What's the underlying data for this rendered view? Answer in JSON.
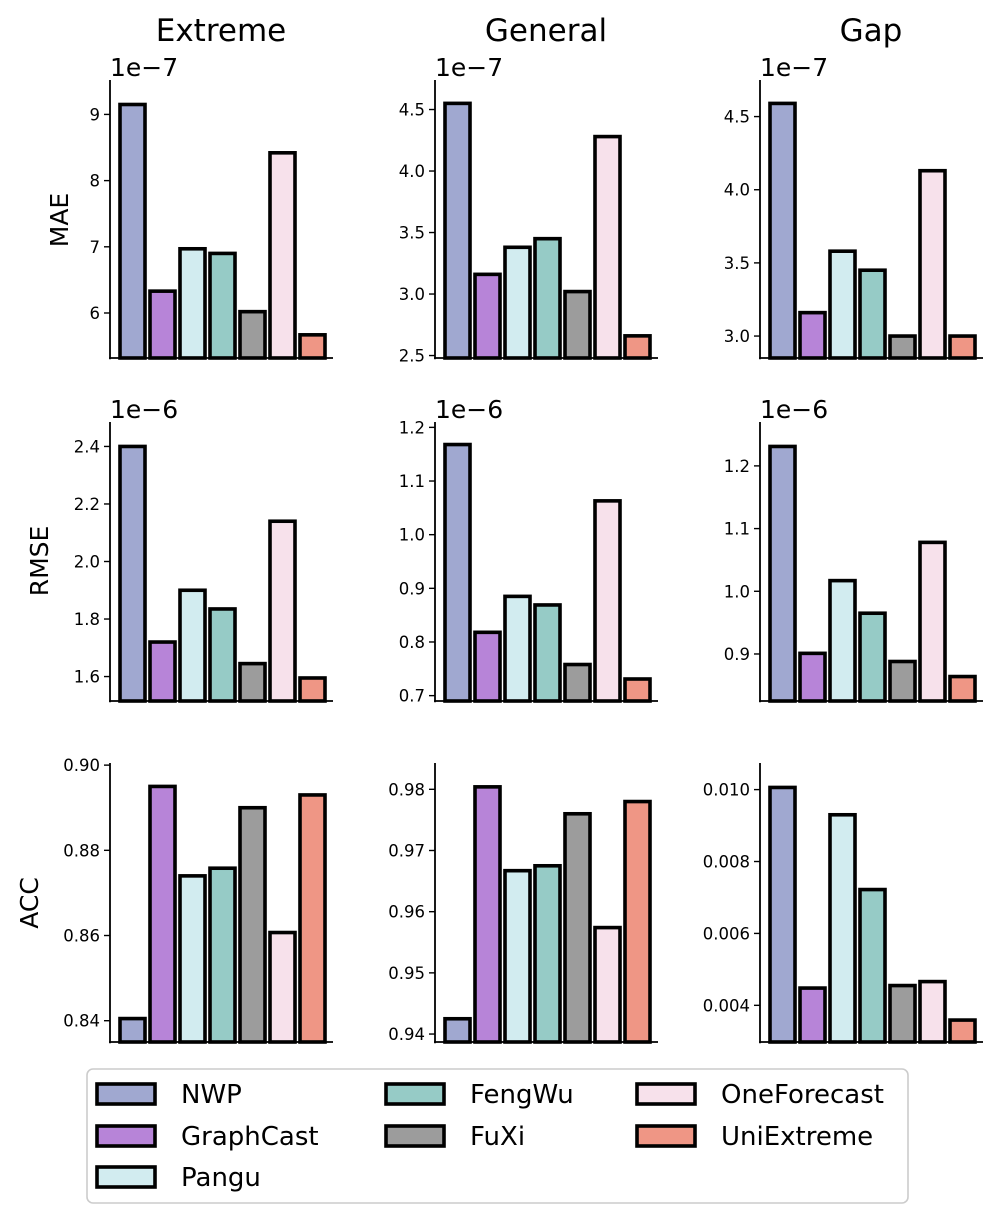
{
  "chart_data": {
    "type": "bar",
    "columns": [
      "Extreme",
      "General",
      "Gap"
    ],
    "rows": [
      "MAE",
      "RMSE",
      "ACC"
    ],
    "models": [
      "NWP",
      "GraphCast",
      "Pangu",
      "FengWu",
      "FuXi",
      "OneForecast",
      "UniExtreme"
    ],
    "colors": {
      "NWP": "#a0a8d0",
      "GraphCast": "#b784d8",
      "Pangu": "#d2ecf0",
      "FengWu": "#96cbc6",
      "FuXi": "#9c9c9c",
      "OneForecast": "#f7e1eb",
      "UniExtreme": "#ef9685"
    },
    "panels": [
      {
        "id": "mae-extreme",
        "row": "MAE",
        "column": "Extreme",
        "offset_label": "1e−7",
        "ylim": [
          5.32,
          9.52
        ],
        "yticks": [
          6,
          7,
          8,
          9
        ],
        "tick_labels": [
          "6",
          "7",
          "8",
          "9"
        ],
        "values": [
          9.15,
          6.33,
          6.97,
          6.9,
          6.02,
          8.42,
          5.67
        ]
      },
      {
        "id": "mae-general",
        "row": "MAE",
        "column": "General",
        "offset_label": "1e−7",
        "ylim": [
          2.48,
          4.74
        ],
        "yticks": [
          2.5,
          3.0,
          3.5,
          4.0,
          4.5
        ],
        "tick_labels": [
          "2.5",
          "3.0",
          "3.5",
          "4.0",
          "4.5"
        ],
        "values": [
          4.55,
          3.16,
          3.38,
          3.45,
          3.02,
          4.28,
          2.66
        ]
      },
      {
        "id": "mae-gap",
        "row": "MAE",
        "column": "Gap",
        "offset_label": "1e−7",
        "ylim": [
          2.85,
          4.75
        ],
        "yticks": [
          3.0,
          3.5,
          4.0,
          4.5
        ],
        "tick_labels": [
          "3.0",
          "3.5",
          "4.0",
          "4.5"
        ],
        "values": [
          4.59,
          3.16,
          3.58,
          3.45,
          3.0,
          4.13,
          3.0
        ]
      },
      {
        "id": "rmse-extreme",
        "row": "RMSE",
        "column": "Extreme",
        "offset_label": "1e−6",
        "ylim": [
          1.515,
          2.485
        ],
        "yticks": [
          1.6,
          1.8,
          2.0,
          2.2,
          2.4
        ],
        "tick_labels": [
          "1.6",
          "1.8",
          "2.0",
          "2.2",
          "2.4"
        ],
        "values": [
          2.4,
          1.72,
          1.9,
          1.835,
          1.645,
          2.14,
          1.595
        ]
      },
      {
        "id": "rmse-general",
        "row": "RMSE",
        "column": "General",
        "offset_label": "1e−6",
        "ylim": [
          0.69,
          1.21
        ],
        "yticks": [
          0.7,
          0.8,
          0.9,
          1.0,
          1.1,
          1.2
        ],
        "tick_labels": [
          "0.7",
          "0.8",
          "0.9",
          "1.0",
          "1.1",
          "1.2"
        ],
        "values": [
          1.168,
          0.818,
          0.885,
          0.869,
          0.758,
          1.063,
          0.731
        ]
      },
      {
        "id": "rmse-gap",
        "row": "RMSE",
        "column": "Gap",
        "offset_label": "1e−6",
        "ylim": [
          0.825,
          1.27
        ],
        "yticks": [
          0.9,
          1.0,
          1.1,
          1.2
        ],
        "tick_labels": [
          "0.9",
          "1.0",
          "1.1",
          "1.2"
        ],
        "values": [
          1.231,
          0.901,
          1.017,
          0.965,
          0.888,
          1.078,
          0.864
        ]
      },
      {
        "id": "acc-extreme",
        "row": "ACC",
        "column": "Extreme",
        "offset_label": "",
        "ylim": [
          0.835,
          0.9005
        ],
        "yticks": [
          0.84,
          0.86,
          0.88,
          0.9
        ],
        "tick_labels": [
          "0.84",
          "0.86",
          "0.88",
          "0.90"
        ],
        "values": [
          0.8405,
          0.895,
          0.874,
          0.8758,
          0.89,
          0.8607,
          0.893
        ]
      },
      {
        "id": "acc-general",
        "row": "ACC",
        "column": "General",
        "offset_label": "",
        "ylim": [
          0.9387,
          0.9843
        ],
        "yticks": [
          0.94,
          0.95,
          0.96,
          0.97,
          0.98
        ],
        "tick_labels": [
          "0.94",
          "0.95",
          "0.96",
          "0.97",
          "0.98"
        ],
        "values": [
          0.9425,
          0.9804,
          0.9667,
          0.9675,
          0.976,
          0.9574,
          0.978
        ]
      },
      {
        "id": "acc-gap",
        "row": "ACC",
        "column": "Gap",
        "offset_label": "",
        "ylim": [
          0.00298,
          0.01074
        ],
        "yticks": [
          0.004,
          0.006,
          0.008,
          0.01
        ],
        "tick_labels": [
          "0.004",
          "0.006",
          "0.008",
          "0.010"
        ],
        "values": [
          0.01006,
          0.00448,
          0.0093,
          0.00722,
          0.00455,
          0.00466,
          0.00359
        ]
      }
    ],
    "legend": {
      "placement": "bottom",
      "entries": [
        "NWP",
        "GraphCast",
        "Pangu",
        "FengWu",
        "FuXi",
        "OneForecast",
        "UniExtreme"
      ]
    }
  }
}
